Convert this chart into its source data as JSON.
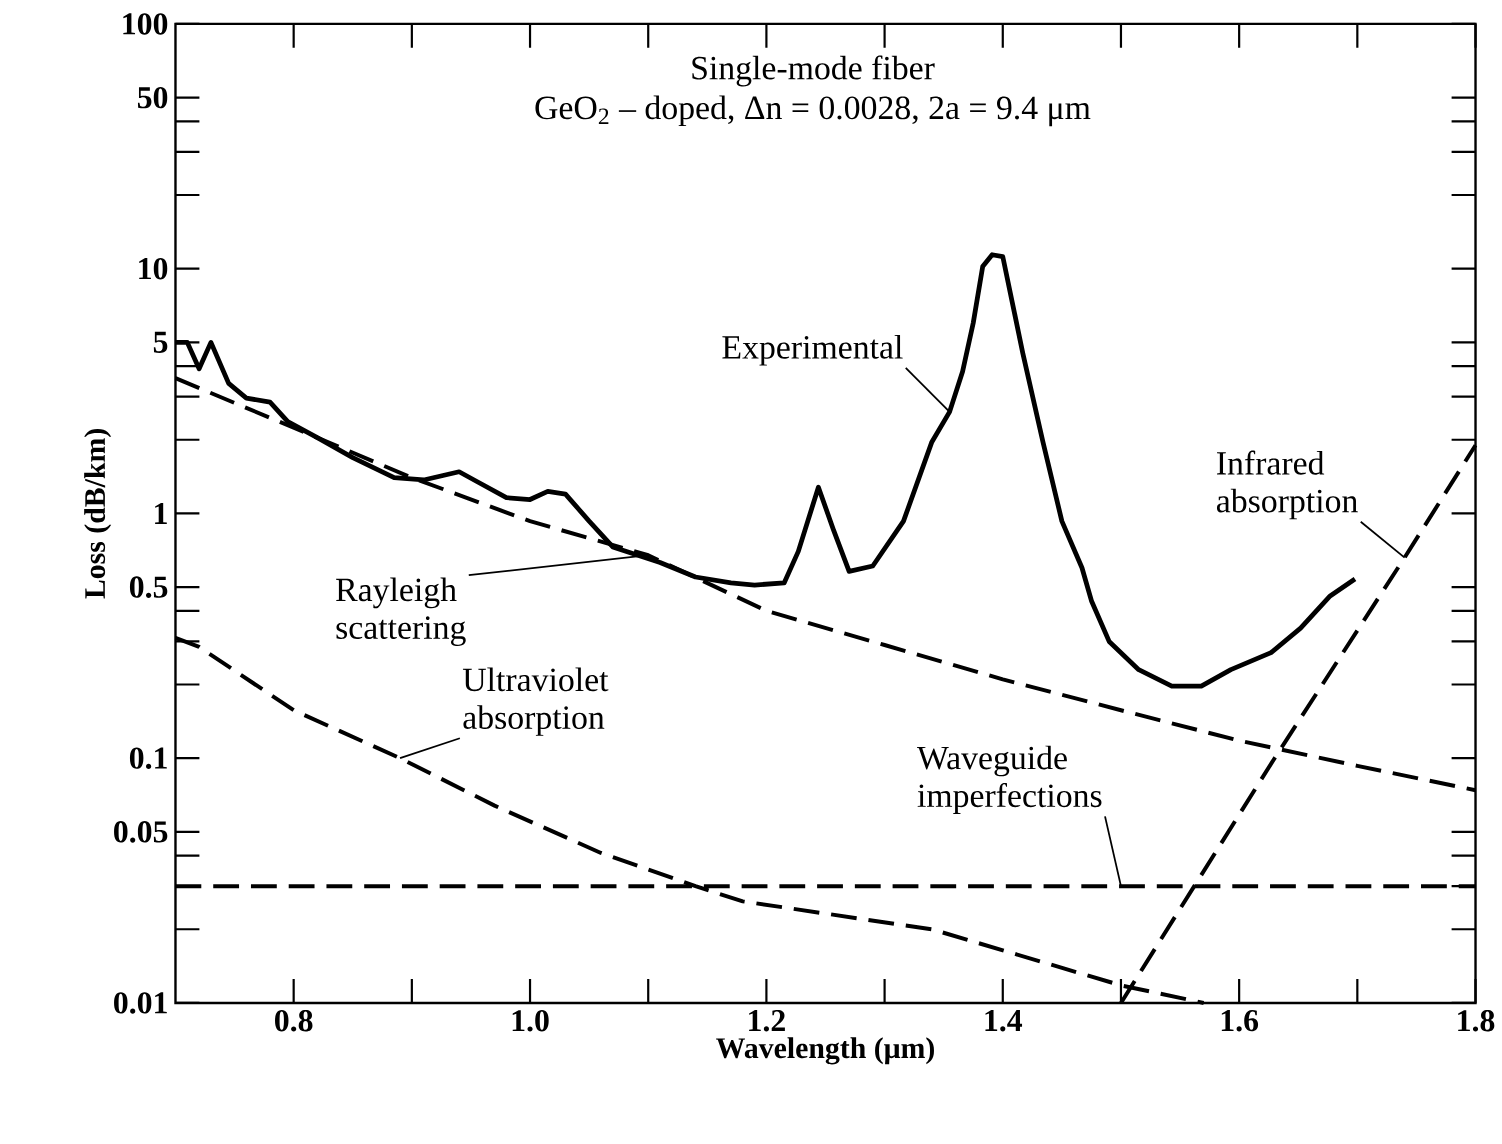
{
  "chart_data": {
    "type": "line",
    "title": "Single-mode fiber",
    "subtitle": "GeO$_{2}$ – doped, Δn = 0.0028, 2a = 9.4 μm",
    "xlabel": "Wavelength (μm)",
    "ylabel": "Loss (dB/km)",
    "log": "y",
    "xlim": [
      0.7,
      1.8
    ],
    "ylim": [
      0.01,
      100
    ],
    "xticks": [
      0.8,
      {
        "value": 0.9,
        "label": null
      },
      {
        "value": 1.0,
        "label": "1.0"
      },
      {
        "value": 1.1,
        "label": null
      },
      1.2,
      {
        "value": 1.3,
        "label": null
      },
      1.4,
      {
        "value": 1.5,
        "label": null
      },
      1.6,
      {
        "value": 1.7,
        "label": null
      },
      1.8
    ],
    "yticks": [
      0.01,
      {
        "value": 0.02,
        "label": null
      },
      {
        "value": 0.03,
        "label": null
      },
      {
        "value": 0.04,
        "label": null
      },
      0.05,
      0.1,
      {
        "value": 0.2,
        "label": null
      },
      {
        "value": 0.3,
        "label": null
      },
      {
        "value": 0.4,
        "label": null
      },
      0.5,
      1,
      {
        "value": 2,
        "label": null
      },
      {
        "value": 3,
        "label": null
      },
      {
        "value": 4,
        "label": null
      },
      5,
      10,
      {
        "value": 20,
        "label": null
      },
      {
        "value": 30,
        "label": null
      },
      {
        "value": 40,
        "label": null
      },
      50,
      100
    ],
    "series": [
      {
        "name": "Experimental",
        "color": "#000000",
        "line_style": "solid",
        "x": [
          0.7,
          0.71,
          0.72,
          0.73,
          0.745,
          0.76,
          0.78,
          0.795,
          0.82,
          0.85,
          0.885,
          0.91,
          0.94,
          0.955,
          0.98,
          1.0,
          1.015,
          1.03,
          1.05,
          1.07,
          1.11,
          1.14,
          1.17,
          1.19,
          1.215,
          1.227,
          1.244,
          1.257,
          1.27,
          1.29,
          1.316,
          1.34,
          1.355,
          1.366,
          1.375,
          1.383,
          1.391,
          1.4,
          1.408,
          1.417,
          1.434,
          1.45,
          1.467,
          1.475,
          1.49,
          1.515,
          1.543,
          1.568,
          1.593,
          1.627,
          1.652,
          1.677,
          1.698
        ],
        "values": [
          5.0,
          5.0,
          3.9,
          5.0,
          3.4,
          2.96,
          2.85,
          2.37,
          2.04,
          1.69,
          1.4,
          1.37,
          1.48,
          1.35,
          1.16,
          1.14,
          1.23,
          1.2,
          0.93,
          0.73,
          0.63,
          0.55,
          0.52,
          0.51,
          0.52,
          0.7,
          1.28,
          0.85,
          0.58,
          0.61,
          0.93,
          1.96,
          2.6,
          3.8,
          6.0,
          10.2,
          11.4,
          11.2,
          7.3,
          4.5,
          1.96,
          0.93,
          0.6,
          0.44,
          0.3,
          0.23,
          0.197,
          0.197,
          0.23,
          0.27,
          0.34,
          0.46,
          0.54
        ]
      },
      {
        "name": "Rayleigh scattering",
        "color": "#000000",
        "line_style": "dashed",
        "x": [
          0.7,
          0.8,
          0.9,
          1.0,
          1.1,
          1.2,
          1.3,
          1.4,
          1.5,
          1.6,
          1.7,
          1.8
        ],
        "values": [
          3.57,
          2.24,
          1.4,
          0.93,
          0.675,
          0.4,
          0.29,
          0.21,
          0.157,
          0.118,
          0.093,
          0.074
        ]
      },
      {
        "name": "Ultraviolet absorption",
        "color": "#000000",
        "line_style": "dashed",
        "x": [
          0.7,
          0.72,
          0.8,
          0.89,
          0.97,
          1.06,
          1.14,
          1.18,
          1.34,
          1.5,
          1.57
        ],
        "values": [
          0.31,
          0.285,
          0.157,
          0.1,
          0.064,
          0.041,
          0.03,
          0.026,
          0.02,
          0.0118,
          0.01
        ]
      },
      {
        "name": "Waveguide imperfections",
        "color": "#000000",
        "line_style": "dashed",
        "x": [
          0.7,
          1.0,
          1.3,
          1.5,
          1.8
        ],
        "values": [
          0.03,
          0.03,
          0.03,
          0.03,
          0.03
        ]
      },
      {
        "name": "Infrared absorption",
        "color": "#000000",
        "line_style": "dashed",
        "x": [
          1.5,
          1.63,
          1.74,
          1.8
        ],
        "values": [
          0.01,
          0.1,
          0.66,
          1.9
        ]
      }
    ]
  }
}
